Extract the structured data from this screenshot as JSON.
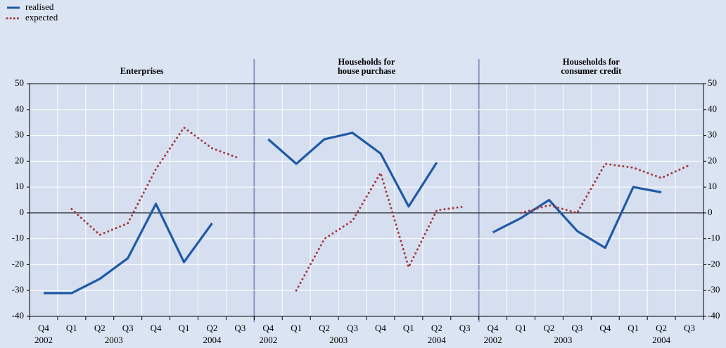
{
  "chart_data": {
    "type": "line",
    "panels": [
      [
        "Enterprises"
      ],
      [
        "Households for",
        "house purchase"
      ],
      [
        "Households for",
        "consumer credit"
      ]
    ],
    "categories": [
      "Q4",
      "Q1",
      "Q2",
      "Q3",
      "Q4",
      "Q1",
      "Q2",
      "Q3",
      "Q4",
      "Q1",
      "Q2",
      "Q3",
      "Q4",
      "Q1",
      "Q2",
      "Q3",
      "Q4",
      "Q1",
      "Q2",
      "Q3",
      "Q4",
      "Q1",
      "Q2",
      "Q3"
    ],
    "category_groups": [
      {
        "label": "2002",
        "span": 1
      },
      {
        "label": "2003",
        "span": 4
      },
      {
        "label": "2004",
        "span": 3
      },
      {
        "label": "2002",
        "span": 1
      },
      {
        "label": "2003",
        "span": 4
      },
      {
        "label": "2004",
        "span": 3
      },
      {
        "label": "2002",
        "span": 1
      },
      {
        "label": "2003",
        "span": 4
      },
      {
        "label": "2004",
        "span": 3
      }
    ],
    "series": [
      {
        "name": "realised",
        "color": "#1f5aa6",
        "style": "solid",
        "values": [
          -31,
          -31,
          -25.5,
          -17.5,
          3.5,
          -19,
          -4,
          null,
          28.5,
          19,
          28.5,
          31,
          23,
          2.5,
          19.5,
          null,
          -7.5,
          -2,
          5,
          -7,
          -13.5,
          10,
          8,
          null
        ]
      },
      {
        "name": "expected",
        "color": "#a8393b",
        "style": "dotted",
        "values": [
          null,
          1.5,
          -8.5,
          -4,
          17,
          33,
          25,
          21,
          null,
          -30,
          -10,
          -3,
          15.5,
          -21,
          1,
          2.5,
          null,
          0,
          3,
          0,
          19,
          17.5,
          13.5,
          18.5
        ]
      }
    ],
    "ylim": [
      -40,
      50
    ],
    "yticks": [
      -40,
      -30,
      -20,
      -10,
      0,
      10,
      20,
      30,
      40,
      50
    ],
    "grid": true
  }
}
